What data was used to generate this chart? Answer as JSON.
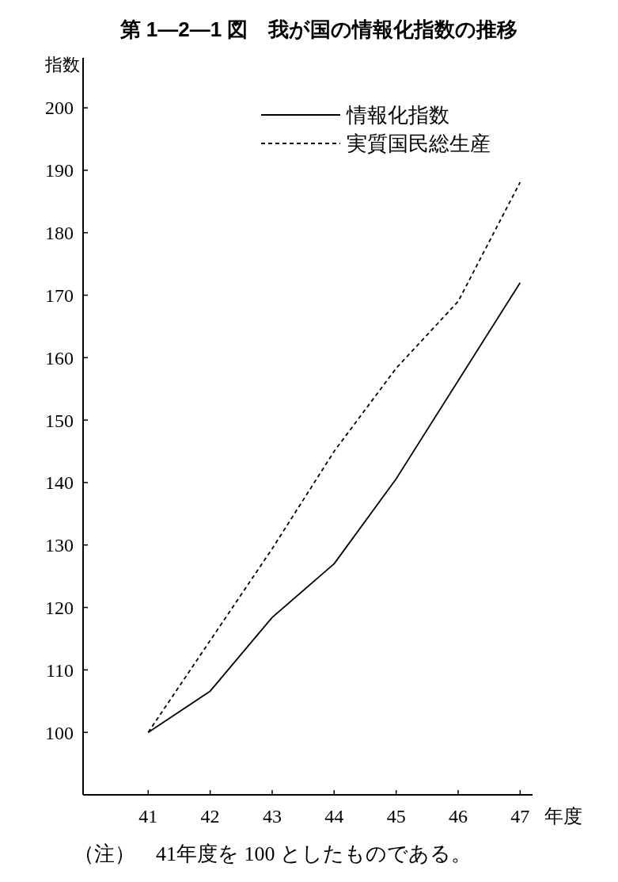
{
  "chart_data": {
    "type": "line",
    "title": "第 1―2―1 図　我が国の情報化指数の推移",
    "ylabel": "指数",
    "xlabel": "年度",
    "x": [
      41,
      42,
      43,
      44,
      45,
      46,
      47
    ],
    "series": [
      {
        "name": "情報化指数",
        "color": "#000000",
        "line_style": "solid",
        "values": [
          100,
          106.6,
          118.4,
          127,
          140.6,
          156.3,
          172
        ]
      },
      {
        "name": "実質国民総生産",
        "color": "#000000",
        "line_style": "dashed",
        "values": [
          100,
          114.7,
          129.4,
          145,
          158.3,
          169,
          188.1
        ]
      }
    ],
    "xlim": [
      39.95,
      47.2
    ],
    "xticks": [
      41,
      42,
      43,
      44,
      45,
      46,
      47
    ],
    "ylim": [
      90,
      208
    ],
    "yticks": [
      100,
      110,
      120,
      130,
      140,
      150,
      160,
      170,
      180,
      190,
      200
    ],
    "grid": false,
    "legend": "top right",
    "marker": "none",
    "annotations": [
      "（注）　41年度を 100 としたものである。"
    ]
  }
}
